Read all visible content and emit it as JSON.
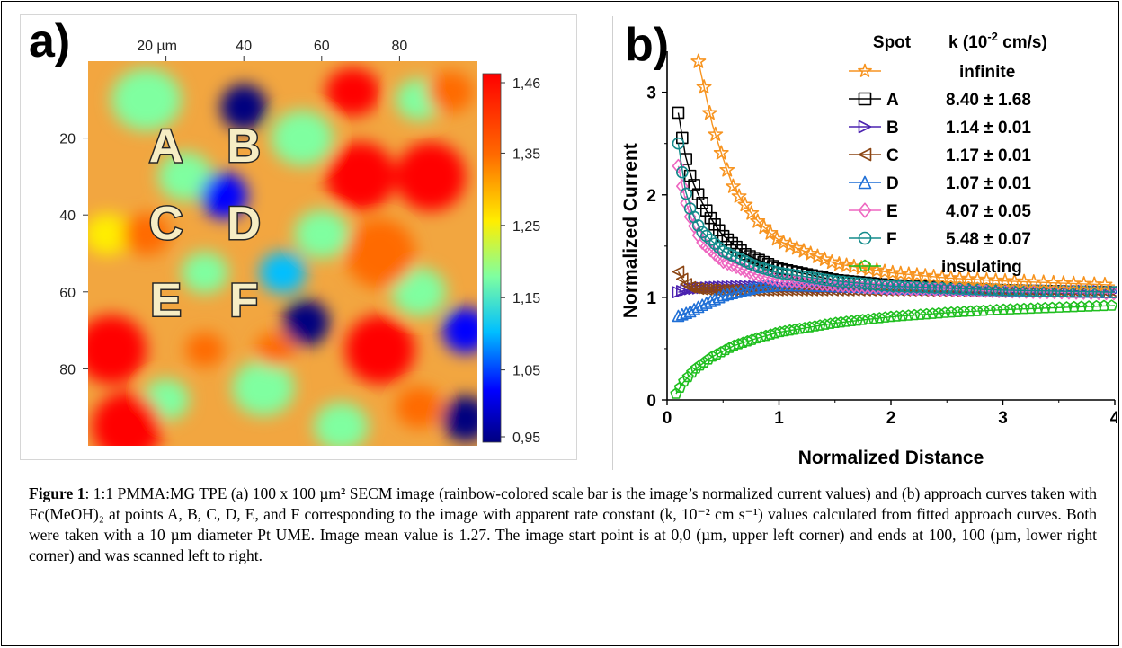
{
  "panel_a": {
    "letter": "a)",
    "top_ticks": [
      "20 µm",
      "40",
      "60",
      "80"
    ],
    "left_ticks": [
      "20",
      "40",
      "60",
      "80"
    ],
    "spots": [
      "A",
      "B",
      "C",
      "D",
      "E",
      "F"
    ],
    "colorbar": {
      "ticks": [
        "1,46",
        "1,35",
        "1,25",
        "1,15",
        "1,05",
        "0,95"
      ],
      "min": 0.95,
      "max": 1.46,
      "colormap": [
        "#00007f",
        "#0000ff",
        "#00bfff",
        "#7fffa0",
        "#ffee00",
        "#ff6a00",
        "#ff0000"
      ]
    },
    "chart_data": {
      "type": "heatmap",
      "title": "",
      "xlim": [
        0,
        100
      ],
      "ylim": [
        0,
        100
      ],
      "value_range": [
        0.95,
        1.46
      ],
      "spot_positions": {
        "A": [
          20,
          22
        ],
        "B": [
          40,
          22
        ],
        "C": [
          20,
          42
        ],
        "D": [
          40,
          42
        ],
        "E": [
          20,
          62
        ],
        "F": [
          40,
          62
        ]
      },
      "features": [
        {
          "x": 40,
          "y": 12,
          "value": 0.96
        },
        {
          "x": 35,
          "y": 35,
          "value": 1.02
        },
        {
          "x": 56,
          "y": 68,
          "value": 0.98
        },
        {
          "x": 97,
          "y": 70,
          "value": 1.0
        },
        {
          "x": 97,
          "y": 93,
          "value": 0.98
        },
        {
          "x": 70,
          "y": 30,
          "value": 1.44
        },
        {
          "x": 88,
          "y": 30,
          "value": 1.46
        },
        {
          "x": 75,
          "y": 50,
          "value": 1.4
        },
        {
          "x": 6,
          "y": 75,
          "value": 1.42
        },
        {
          "x": 75,
          "y": 75,
          "value": 1.42
        },
        {
          "x": 10,
          "y": 95,
          "value": 1.45
        }
      ]
    }
  },
  "panel_b": {
    "letter": "b)",
    "xlabel": "Normalized Distance",
    "ylabel": "Normalized Current",
    "x_ticks": [
      "0",
      "1",
      "2",
      "3",
      "4"
    ],
    "y_ticks": [
      "0",
      "1",
      "2",
      "3"
    ],
    "legend_header_spot": "Spot",
    "legend_header_k": "k (10",
    "legend_header_k_sup": "-2",
    "legend_header_k_tail": " cm/s)",
    "legend": [
      {
        "spot": "",
        "k": "infinite",
        "color": "#f79420",
        "marker": "star"
      },
      {
        "spot": "A",
        "k": "8.40 ± 1.68",
        "color": "#000000",
        "marker": "square"
      },
      {
        "spot": "B",
        "k": "1.14 ± 0.01",
        "color": "#4b22b0",
        "marker": "triangle-right"
      },
      {
        "spot": "C",
        "k": "1.17 ± 0.01",
        "color": "#8b4513",
        "marker": "triangle-left"
      },
      {
        "spot": "D",
        "k": "1.07 ± 0.01",
        "color": "#1f6fd6",
        "marker": "triangle-up"
      },
      {
        "spot": "E",
        "k": "4.07 ± 0.05",
        "color": "#ee66c0",
        "marker": "diamond"
      },
      {
        "spot": "F",
        "k": "5.48 ± 0.07",
        "color": "#138b8b",
        "marker": "circle"
      },
      {
        "spot": "",
        "k": "insulating",
        "color": "#1fbf1f",
        "marker": "pentagon"
      }
    ],
    "chart_data": {
      "type": "line",
      "xlabel": "Normalized Distance",
      "ylabel": "Normalized Current",
      "xlim": [
        0,
        4
      ],
      "ylim": [
        0,
        3.4
      ],
      "series": [
        {
          "name": "infinite",
          "x": [
            0.28,
            0.32,
            0.4,
            0.5,
            0.6,
            0.8,
            1.0,
            1.5,
            2.0,
            2.5,
            3.0,
            3.5,
            4.0
          ],
          "y": [
            3.3,
            3.1,
            2.7,
            2.35,
            2.05,
            1.75,
            1.55,
            1.33,
            1.24,
            1.19,
            1.16,
            1.14,
            1.12
          ]
        },
        {
          "name": "A",
          "x": [
            0.1,
            0.15,
            0.2,
            0.3,
            0.4,
            0.5,
            0.7,
            1.0,
            1.5,
            2.0,
            3.0,
            4.0
          ],
          "y": [
            2.8,
            2.45,
            2.2,
            1.95,
            1.75,
            1.6,
            1.42,
            1.28,
            1.17,
            1.12,
            1.07,
            1.05
          ]
        },
        {
          "name": "B",
          "x": [
            0.1,
            0.2,
            0.4,
            0.7,
            1.0,
            1.5,
            2.0,
            3.0,
            4.0
          ],
          "y": [
            1.05,
            1.08,
            1.1,
            1.11,
            1.1,
            1.09,
            1.08,
            1.07,
            1.06
          ]
        },
        {
          "name": "C",
          "x": [
            0.1,
            0.15,
            0.2,
            0.3,
            0.5,
            1.0,
            2.0,
            3.0,
            4.0
          ],
          "y": [
            1.25,
            1.15,
            1.1,
            1.08,
            1.07,
            1.07,
            1.07,
            1.06,
            1.05
          ]
        },
        {
          "name": "D",
          "x": [
            0.1,
            0.2,
            0.3,
            0.5,
            0.8,
            1.0,
            1.5,
            2.0,
            3.0,
            4.0
          ],
          "y": [
            0.82,
            0.86,
            0.92,
            1.02,
            1.1,
            1.12,
            1.11,
            1.09,
            1.07,
            1.05
          ]
        },
        {
          "name": "E",
          "x": [
            0.1,
            0.15,
            0.2,
            0.3,
            0.5,
            0.8,
            1.0,
            1.5,
            2.0,
            3.0,
            4.0
          ],
          "y": [
            2.28,
            2.0,
            1.8,
            1.55,
            1.35,
            1.22,
            1.17,
            1.12,
            1.09,
            1.06,
            1.04
          ]
        },
        {
          "name": "F",
          "x": [
            0.1,
            0.15,
            0.2,
            0.3,
            0.5,
            0.8,
            1.0,
            1.5,
            2.0,
            3.0,
            4.0
          ],
          "y": [
            2.5,
            2.1,
            1.88,
            1.65,
            1.45,
            1.3,
            1.24,
            1.16,
            1.11,
            1.07,
            1.05
          ]
        },
        {
          "name": "insulating",
          "x": [
            0.08,
            0.15,
            0.25,
            0.4,
            0.6,
            0.8,
            1.0,
            1.5,
            2.0,
            2.5,
            3.0,
            3.5,
            4.0
          ],
          "y": [
            0.06,
            0.18,
            0.3,
            0.42,
            0.53,
            0.6,
            0.66,
            0.75,
            0.81,
            0.85,
            0.88,
            0.9,
            0.92
          ]
        }
      ]
    }
  },
  "caption": {
    "label": "Figure 1",
    "text": ": 1:1 PMMA:MG TPE (a) 100 x 100 µm² SECM image (rainbow-colored scale bar is the image’s normalized current values) and (b) approach curves taken with Fc(MeOH)₂ at points A, B, C, D, E, and F corresponding to the image with apparent rate constant (k, 10⁻² cm s⁻¹) values calculated from fitted approach curves. Both were taken with a 10 µm diameter Pt UME. Image mean value is 1.27. The image start point is at 0,0 (µm, upper left corner) and ends at 100, 100 (µm, lower right corner) and was scanned left to right."
  }
}
